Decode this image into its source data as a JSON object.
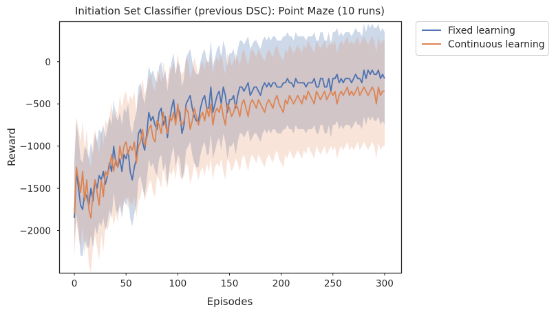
{
  "chart_data": {
    "type": "line",
    "title": "Initiation Set Classifier (previous DSC): Point Maze (10 runs)",
    "xlabel": "Episodes",
    "ylabel": "Reward",
    "xlim": [
      -14,
      316
    ],
    "ylim": [
      -2500,
      470
    ],
    "x_ticks": [
      0,
      50,
      100,
      150,
      200,
      250,
      300
    ],
    "y_ticks": [
      0,
      -500,
      -1000,
      -1500,
      -2000
    ],
    "x_tick_labels": [
      "0",
      "50",
      "100",
      "150",
      "200",
      "250",
      "300"
    ],
    "y_tick_labels": [
      "0",
      "−500",
      "−1000",
      "−1500",
      "−2000"
    ],
    "grid": false,
    "legend_position": "outside-upper-right",
    "x_sampling": "every 2 episodes, 0 to 300",
    "series": [
      {
        "name": "Fixed learning",
        "color": "#4c72b0",
        "band_color": "#4c72b0",
        "band_opacity": 0.28,
        "mean": [
          -1850,
          -1300,
          -1500,
          -1700,
          -1750,
          -1550,
          -1600,
          -1700,
          -1500,
          -1650,
          -1400,
          -1500,
          -1350,
          -1400,
          -1300,
          -1450,
          -1350,
          -1200,
          -1300,
          -1000,
          -1200,
          -1250,
          -1150,
          -1300,
          -1100,
          -1150,
          -1050,
          -1300,
          -1400,
          -1250,
          -1150,
          -850,
          -800,
          -950,
          -1050,
          -850,
          -600,
          -700,
          -650,
          -750,
          -800,
          -600,
          -550,
          -750,
          -650,
          -900,
          -700,
          -550,
          -450,
          -700,
          -550,
          -600,
          -850,
          -750,
          -500,
          -450,
          -400,
          -550,
          -650,
          -700,
          -700,
          -550,
          -450,
          -400,
          -550,
          -550,
          -300,
          -600,
          -500,
          -400,
          -350,
          -500,
          -300,
          -400,
          -600,
          -450,
          -450,
          -400,
          -550,
          -400,
          -300,
          -300,
          -350,
          -300,
          -250,
          -400,
          -350,
          -300,
          -300,
          -350,
          -400,
          -300,
          -250,
          -300,
          -250,
          -300,
          -250,
          -250,
          -300,
          -300,
          -300,
          -250,
          -250,
          -200,
          -250,
          -250,
          -300,
          -200,
          -250,
          -250,
          -250,
          -250,
          -300,
          -250,
          -250,
          -250,
          -200,
          -300,
          -300,
          -200,
          -200,
          -300,
          -300,
          -200,
          -350,
          -200,
          -200,
          -150,
          -250,
          -200,
          -250,
          -200,
          -200,
          -200,
          -250,
          -200,
          -150,
          -200,
          -200,
          -250,
          -100,
          -200,
          -100,
          -150,
          -100,
          -150,
          -150,
          -100,
          -200,
          -150,
          -200
        ],
        "lower": [
          -2150,
          -1800,
          -2000,
          -2300,
          -2300,
          -2100,
          -2200,
          -2200,
          -2050,
          -2200,
          -1950,
          -2050,
          -1900,
          -1950,
          -1850,
          -2000,
          -1900,
          -1750,
          -1850,
          -1550,
          -1750,
          -1800,
          -1700,
          -1850,
          -1650,
          -1700,
          -1600,
          -1850,
          -1950,
          -1800,
          -1700,
          -1400,
          -1350,
          -1500,
          -1600,
          -1400,
          -1150,
          -1250,
          -1200,
          -1300,
          -1350,
          -1150,
          -1100,
          -1300,
          -1200,
          -1450,
          -1250,
          -1100,
          -1000,
          -1250,
          -1100,
          -1150,
          -1400,
          -1300,
          -1050,
          -1000,
          -950,
          -1100,
          -1200,
          -1250,
          -1250,
          -1100,
          -1000,
          -950,
          -1100,
          -1100,
          -850,
          -1150,
          -1050,
          -950,
          -900,
          -1050,
          -850,
          -950,
          -1150,
          -1000,
          -1000,
          -950,
          -1100,
          -950,
          -850,
          -850,
          -900,
          -850,
          -800,
          -950,
          -900,
          -850,
          -850,
          -900,
          -950,
          -850,
          -800,
          -850,
          -800,
          -850,
          -800,
          -800,
          -850,
          -850,
          -850,
          -800,
          -800,
          -750,
          -800,
          -800,
          -850,
          -750,
          -800,
          -800,
          -800,
          -800,
          -850,
          -800,
          -800,
          -800,
          -750,
          -850,
          -850,
          -750,
          -750,
          -850,
          -850,
          -750,
          -900,
          -750,
          -750,
          -700,
          -800,
          -750,
          -800,
          -750,
          -750,
          -750,
          -800,
          -750,
          -700,
          -750,
          -750,
          -800,
          -650,
          -750,
          -650,
          -700,
          -650,
          -700,
          -700,
          -650,
          -750,
          -700,
          -750
        ],
        "upper": [
          -1150,
          -700,
          -900,
          -1150,
          -1200,
          -1000,
          -1050,
          -1150,
          -950,
          -1100,
          -850,
          -950,
          -800,
          -850,
          -750,
          -900,
          -800,
          -650,
          -750,
          -450,
          -650,
          -700,
          -600,
          -750,
          -550,
          -600,
          -500,
          -750,
          -850,
          -700,
          -600,
          -300,
          -250,
          -400,
          -500,
          -300,
          -50,
          -150,
          -100,
          -200,
          -250,
          -50,
          0,
          -200,
          -100,
          -350,
          -150,
          0,
          100,
          -150,
          0,
          -50,
          -300,
          -200,
          50,
          100,
          150,
          0,
          -100,
          -150,
          -150,
          0,
          100,
          150,
          0,
          0,
          250,
          -50,
          50,
          150,
          200,
          50,
          250,
          150,
          -50,
          100,
          100,
          150,
          0,
          150,
          250,
          250,
          200,
          250,
          300,
          150,
          200,
          250,
          250,
          200,
          150,
          250,
          300,
          250,
          300,
          250,
          300,
          300,
          250,
          250,
          250,
          300,
          300,
          350,
          300,
          300,
          250,
          350,
          300,
          300,
          300,
          300,
          250,
          300,
          300,
          300,
          350,
          250,
          250,
          350,
          350,
          250,
          250,
          350,
          200,
          350,
          350,
          400,
          300,
          350,
          300,
          350,
          350,
          350,
          300,
          350,
          400,
          350,
          350,
          300,
          450,
          350,
          450,
          400,
          450,
          400,
          400,
          450,
          350,
          400,
          350
        ]
      },
      {
        "name": "Continuous learning",
        "color": "#dd8452",
        "band_color": "#dd8452",
        "band_opacity": 0.22,
        "mean": [
          -1800,
          -1250,
          -1400,
          -1550,
          -1300,
          -1650,
          -1400,
          -1750,
          -1850,
          -1550,
          -1400,
          -1550,
          -1700,
          -1400,
          -1600,
          -1300,
          -1350,
          -1250,
          -1100,
          -1300,
          -1150,
          -1250,
          -1000,
          -1150,
          -1000,
          -950,
          -1100,
          -1000,
          -1050,
          -950,
          -1200,
          -1000,
          -950,
          -800,
          -1000,
          -900,
          -800,
          -750,
          -900,
          -950,
          -700,
          -750,
          -850,
          -600,
          -750,
          -850,
          -650,
          -700,
          -600,
          -750,
          -500,
          -700,
          -750,
          -700,
          -550,
          -600,
          -800,
          -700,
          -550,
          -650,
          -750,
          -650,
          -600,
          -700,
          -550,
          -650,
          -500,
          -750,
          -600,
          -550,
          -600,
          -500,
          -650,
          -750,
          -500,
          -550,
          -650,
          -600,
          -500,
          -550,
          -650,
          -500,
          -450,
          -550,
          -650,
          -500,
          -450,
          -500,
          -550,
          -450,
          -500,
          -550,
          -600,
          -500,
          -450,
          -500,
          -550,
          -450,
          -400,
          -500,
          -550,
          -600,
          -450,
          -500,
          -400,
          -450,
          -500,
          -450,
          -400,
          -450,
          -500,
          -400,
          -450,
          -350,
          -400,
          -450,
          -500,
          -350,
          -400,
          -450,
          -400,
          -350,
          -450,
          -400,
          -350,
          -400,
          -350,
          -500,
          -400,
          -350,
          -400,
          -350,
          -300,
          -400,
          -350,
          -400,
          -350,
          -300,
          -400,
          -350,
          -300,
          -350,
          -400,
          -350,
          -300,
          -350,
          -500,
          -300,
          -400,
          -350,
          -350
        ],
        "lower": [
          -2300,
          -1900,
          -2050,
          -2200,
          -1950,
          -2300,
          -2050,
          -2400,
          -2500,
          -2200,
          -2050,
          -2200,
          -2350,
          -2050,
          -2250,
          -1950,
          -2000,
          -1900,
          -1750,
          -1950,
          -1800,
          -1900,
          -1650,
          -1800,
          -1650,
          -1600,
          -1750,
          -1650,
          -1700,
          -1600,
          -1850,
          -1650,
          -1600,
          -1450,
          -1650,
          -1550,
          -1450,
          -1400,
          -1550,
          -1600,
          -1350,
          -1400,
          -1500,
          -1250,
          -1400,
          -1500,
          -1300,
          -1350,
          -1250,
          -1400,
          -1150,
          -1350,
          -1400,
          -1350,
          -1200,
          -1250,
          -1450,
          -1350,
          -1200,
          -1300,
          -1400,
          -1300,
          -1250,
          -1350,
          -1200,
          -1300,
          -1150,
          -1400,
          -1250,
          -1200,
          -1250,
          -1150,
          -1300,
          -1400,
          -1150,
          -1200,
          -1300,
          -1250,
          -1150,
          -1200,
          -1300,
          -1150,
          -1100,
          -1200,
          -1300,
          -1150,
          -1100,
          -1150,
          -1200,
          -1100,
          -1150,
          -1200,
          -1250,
          -1150,
          -1100,
          -1150,
          -1200,
          -1100,
          -1050,
          -1150,
          -1200,
          -1250,
          -1100,
          -1150,
          -1050,
          -1100,
          -1150,
          -1100,
          -1050,
          -1100,
          -1150,
          -1050,
          -1100,
          -1000,
          -1050,
          -1100,
          -1150,
          -1000,
          -1050,
          -1100,
          -1050,
          -1000,
          -1100,
          -1050,
          -1000,
          -1050,
          -1000,
          -1150,
          -1050,
          -1000,
          -1050,
          -1000,
          -950,
          -1050,
          -1000,
          -1050,
          -1000,
          -950,
          -1050,
          -1000,
          -950,
          -1000,
          -1050,
          -1000,
          -950,
          -1000,
          -1150,
          -950,
          -1050,
          -1000,
          -1000
        ],
        "upper": [
          -1300,
          -650,
          -800,
          -950,
          -700,
          -1050,
          -800,
          -1150,
          -1250,
          -950,
          -800,
          -950,
          -1100,
          -800,
          -1000,
          -700,
          -750,
          -650,
          -500,
          -700,
          -550,
          -650,
          -400,
          -550,
          -400,
          -350,
          -500,
          -400,
          -450,
          -350,
          -600,
          -400,
          -350,
          -200,
          -400,
          -300,
          -200,
          -150,
          -300,
          -350,
          -100,
          -150,
          -250,
          0,
          -150,
          -250,
          -50,
          -100,
          0,
          -150,
          100,
          -100,
          -150,
          -100,
          50,
          0,
          -200,
          -100,
          50,
          -50,
          -150,
          -50,
          0,
          -100,
          50,
          -50,
          100,
          -150,
          0,
          50,
          0,
          100,
          -50,
          -150,
          100,
          50,
          -50,
          0,
          100,
          50,
          -50,
          100,
          150,
          50,
          -50,
          100,
          150,
          100,
          50,
          150,
          100,
          50,
          0,
          100,
          150,
          100,
          50,
          150,
          200,
          100,
          50,
          0,
          150,
          100,
          200,
          150,
          100,
          150,
          200,
          150,
          100,
          200,
          150,
          250,
          200,
          150,
          100,
          250,
          200,
          150,
          200,
          250,
          150,
          200,
          250,
          200,
          250,
          100,
          200,
          250,
          200,
          250,
          300,
          200,
          250,
          200,
          250,
          300,
          200,
          250,
          300,
          250,
          200,
          250,
          300,
          250,
          100,
          300,
          200,
          250,
          250
        ]
      }
    ]
  }
}
